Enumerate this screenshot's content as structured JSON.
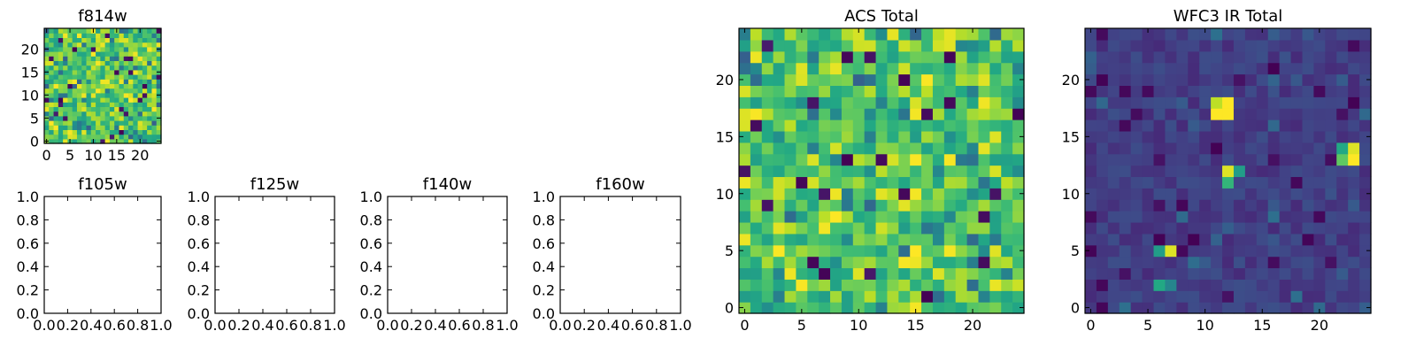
{
  "chart_data": [
    {
      "panel": "f814w",
      "type": "heatmap",
      "title": "f814w",
      "grid_size": 25,
      "xlim": [
        -0.5,
        24.5
      ],
      "ylim": [
        -0.5,
        24.5
      ],
      "xticks": [
        0,
        5,
        10,
        15,
        20
      ],
      "yticks": [
        0,
        5,
        10,
        15,
        20
      ],
      "colormap": "viridis",
      "pattern": "noise"
    },
    {
      "panel": "f105w",
      "type": "empty",
      "title": "f105w",
      "xlim": [
        0,
        1
      ],
      "ylim": [
        0,
        1
      ],
      "xticks": [
        "0.0",
        "0.2",
        "0.4",
        "0.6",
        "0.8",
        "1.0"
      ],
      "yticks": [
        "0.0",
        "0.2",
        "0.4",
        "0.6",
        "0.8",
        "1.0"
      ]
    },
    {
      "panel": "f125w",
      "type": "empty",
      "title": "f125w",
      "xlim": [
        0,
        1
      ],
      "ylim": [
        0,
        1
      ],
      "xticks": [
        "0.0",
        "0.2",
        "0.4",
        "0.6",
        "0.8",
        "1.0"
      ],
      "yticks": [
        "0.0",
        "0.2",
        "0.4",
        "0.6",
        "0.8",
        "1.0"
      ]
    },
    {
      "panel": "f140w",
      "type": "empty",
      "title": "f140w",
      "xlim": [
        0,
        1
      ],
      "ylim": [
        0,
        1
      ],
      "xticks": [
        "0.0",
        "0.2",
        "0.4",
        "0.6",
        "0.8",
        "1.0"
      ],
      "yticks": [
        "0.0",
        "0.2",
        "0.4",
        "0.6",
        "0.8",
        "1.0"
      ]
    },
    {
      "panel": "f160w",
      "type": "empty",
      "title": "f160w",
      "xlim": [
        0,
        1
      ],
      "ylim": [
        0,
        1
      ],
      "xticks": [
        "0.0",
        "0.2",
        "0.4",
        "0.6",
        "0.8",
        "1.0"
      ],
      "yticks": [
        "0.0",
        "0.2",
        "0.4",
        "0.6",
        "0.8",
        "1.0"
      ]
    },
    {
      "panel": "acs_total",
      "type": "heatmap",
      "title": "ACS Total",
      "grid_size": 25,
      "xlim": [
        -0.5,
        24.5
      ],
      "ylim": [
        -0.5,
        24.5
      ],
      "xticks": [
        0,
        5,
        10,
        15,
        20
      ],
      "yticks": [
        0,
        5,
        10,
        15,
        20
      ],
      "colormap": "viridis",
      "pattern": "noise"
    },
    {
      "panel": "wfc3_ir_total",
      "type": "heatmap",
      "title": "WFC3 IR Total",
      "grid_size": 25,
      "xlim": [
        -0.5,
        24.5
      ],
      "ylim": [
        -0.5,
        24.5
      ],
      "xticks": [
        0,
        5,
        10,
        15,
        20
      ],
      "yticks": [
        0,
        5,
        10,
        15,
        20
      ],
      "colormap": "viridis",
      "pattern": "background",
      "bright_sources": [
        {
          "x": 7,
          "y": 5,
          "value": 0.95
        },
        {
          "x": 6,
          "y": 5,
          "value": 0.55
        },
        {
          "x": 6,
          "y": 2,
          "value": 0.6
        },
        {
          "x": 7,
          "y": 2,
          "value": 0.45
        },
        {
          "x": 11,
          "y": 18,
          "value": 0.9
        },
        {
          "x": 12,
          "y": 18,
          "value": 1.0
        },
        {
          "x": 11,
          "y": 17,
          "value": 1.0
        },
        {
          "x": 12,
          "y": 17,
          "value": 1.0
        },
        {
          "x": 12,
          "y": 12,
          "value": 0.95
        },
        {
          "x": 13,
          "y": 12,
          "value": 0.55
        },
        {
          "x": 12,
          "y": 11,
          "value": 0.65
        },
        {
          "x": 23,
          "y": 14,
          "value": 0.95
        },
        {
          "x": 22,
          "y": 14,
          "value": 0.6
        },
        {
          "x": 23,
          "y": 13,
          "value": 1.0
        },
        {
          "x": 22,
          "y": 13,
          "value": 0.75
        }
      ]
    }
  ]
}
